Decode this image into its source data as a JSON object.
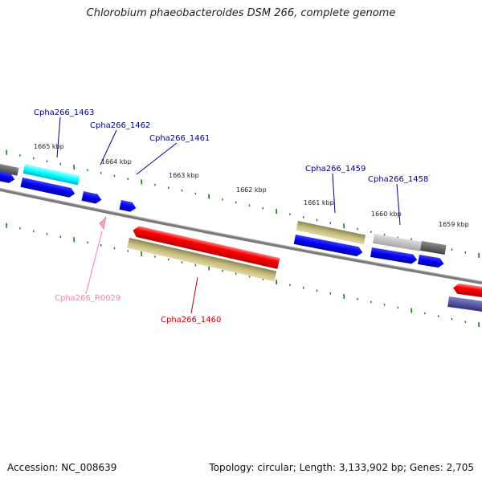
{
  "title": "Chlorobium phaeobacteroides DSM 266, complete genome",
  "footer": {
    "accession": "Accession: NC_008639",
    "topology": "Topology: circular; Length: 3,133,902 bp; Genes: 2,705"
  },
  "colors": {
    "backbone": "#808080",
    "ticks": "#1a7a1a",
    "gene_label": "#00008b",
    "rna_label": "#ff7ab5",
    "highlight_label": "#cc0000"
  },
  "scale_labels": [
    {
      "id": "kbp-1665",
      "text": "1665 kbp"
    },
    {
      "id": "kbp-1664",
      "text": "1664 kbp"
    },
    {
      "id": "kbp-1663",
      "text": "1663 kbp"
    },
    {
      "id": "kbp-1662",
      "text": "1662 kbp"
    },
    {
      "id": "kbp-1661",
      "text": "1661 kbp"
    },
    {
      "id": "kbp-1660",
      "text": "1660 kbp"
    },
    {
      "id": "kbp-1659",
      "text": "1659 kbp"
    }
  ],
  "gene_labels": [
    {
      "id": "cpha266-1463",
      "text": "Cpha266_1463",
      "type": "gene"
    },
    {
      "id": "cpha266-1462",
      "text": "Cpha266_1462",
      "type": "gene"
    },
    {
      "id": "cpha266-1461",
      "text": "Cpha266_1461",
      "type": "gene"
    },
    {
      "id": "cpha266-1459",
      "text": "Cpha266_1459",
      "type": "gene"
    },
    {
      "id": "cpha266-1458",
      "text": "Cpha266_1458",
      "type": "gene"
    },
    {
      "id": "cpha266-r0029",
      "text": "Cpha266_R0029",
      "type": "rna"
    },
    {
      "id": "cpha266-1460",
      "text": "Cpha266_1460",
      "type": "highlight"
    }
  ]
}
